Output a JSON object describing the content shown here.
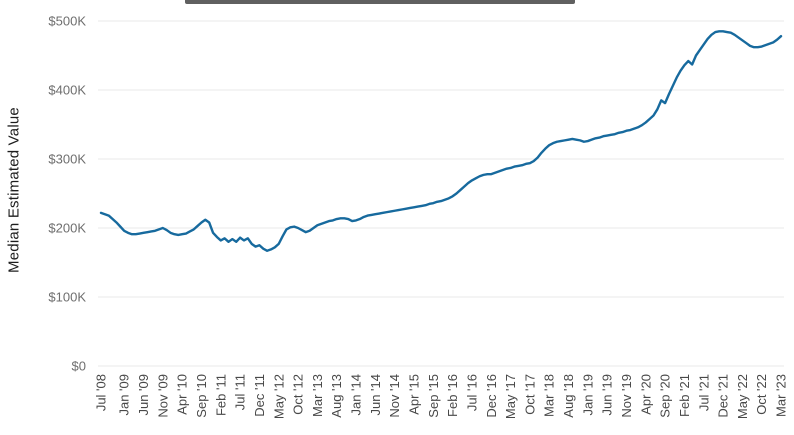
{
  "chart_data": {
    "type": "line",
    "title": "",
    "ylabel": "Median Estimated Value",
    "y_tick_labels": [
      "$0",
      "$100K",
      "$200K",
      "$300K",
      "$400K",
      "$500K"
    ],
    "ylim_dollars": [
      0,
      500000
    ],
    "grid": true,
    "legend_position": "none",
    "x_range_label": "Jul '08 to Mar '23",
    "frequency": "monthly",
    "x_tick_labels": [
      "Jul '08",
      "Jan '09",
      "Jun '09",
      "Nov '09",
      "Apr '10",
      "Sep '10",
      "Feb '11",
      "Jul '11",
      "Dec '11",
      "May '12",
      "Oct '12",
      "Mar '13",
      "Aug '13",
      "Jan '14",
      "Jun '14",
      "Nov '14",
      "Apr '15",
      "Sep '15",
      "Feb '16",
      "Jul '16",
      "Dec '16",
      "May '17",
      "Oct '17",
      "Mar '18",
      "Aug '18",
      "Jan '19",
      "Jun '19",
      "Nov '19",
      "Apr '20",
      "Sep '20",
      "Feb '21",
      "Jul '21",
      "Dec '21",
      "May '22",
      "Oct '22",
      "Mar '23"
    ],
    "x_tick_month_index": [
      0,
      6,
      11,
      16,
      21,
      26,
      31,
      36,
      41,
      46,
      51,
      56,
      61,
      66,
      71,
      76,
      81,
      86,
      91,
      96,
      101,
      106,
      111,
      116,
      121,
      126,
      131,
      136,
      141,
      146,
      151,
      156,
      161,
      166,
      171,
      176
    ],
    "series": [
      {
        "name": "Median Estimated Value",
        "unit": "USD thousands",
        "values_k": [
          222,
          220,
          218,
          213,
          208,
          202,
          196,
          193,
          191,
          191,
          192,
          193,
          194,
          195,
          196,
          198,
          200,
          197,
          193,
          191,
          190,
          191,
          192,
          195,
          198,
          203,
          208,
          212,
          208,
          193,
          187,
          182,
          185,
          180,
          184,
          180,
          186,
          182,
          185,
          177,
          173,
          175,
          170,
          167,
          169,
          172,
          177,
          188,
          198,
          201,
          202,
          200,
          197,
          194,
          196,
          200,
          204,
          206,
          208,
          210,
          211,
          213,
          214,
          214,
          213,
          210,
          211,
          213,
          216,
          218,
          219,
          220,
          221,
          222,
          223,
          224,
          225,
          226,
          227,
          228,
          229,
          230,
          231,
          232,
          233,
          235,
          236,
          238,
          239,
          241,
          243,
          246,
          250,
          255,
          260,
          265,
          269,
          272,
          275,
          277,
          278,
          278,
          280,
          282,
          284,
          286,
          287,
          289,
          290,
          291,
          293,
          294,
          297,
          302,
          309,
          315,
          320,
          323,
          325,
          326,
          327,
          328,
          329,
          328,
          327,
          325,
          326,
          328,
          330,
          331,
          333,
          334,
          335,
          336,
          338,
          339,
          341,
          342,
          344,
          346,
          349,
          353,
          358,
          363,
          372,
          385,
          381,
          394,
          406,
          418,
          428,
          436,
          442,
          437,
          450,
          458,
          466,
          474,
          480,
          484,
          485,
          485,
          484,
          483,
          480,
          476,
          472,
          468,
          464,
          462,
          462,
          463,
          465,
          467,
          469,
          473,
          478
        ]
      }
    ]
  },
  "colors": {
    "line": "#176a9e",
    "grid": "#e8e8e8",
    "x_tick_label": "#484848",
    "y_tick_label": "#6e6e6e",
    "y_axis_title": "#1d1d1d",
    "top_bar": "#606060",
    "background": "#ffffff"
  }
}
